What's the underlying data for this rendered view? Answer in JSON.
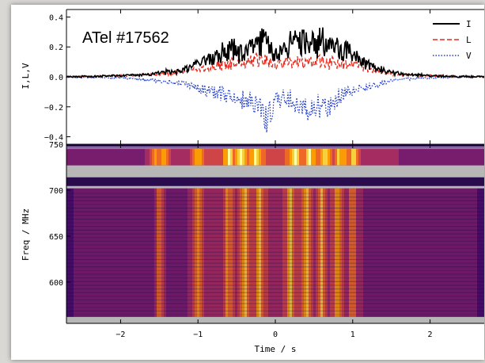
{
  "annotation": "ATel #17562",
  "chart_data": [
    {
      "type": "line",
      "title": "",
      "xlabel": "",
      "ylabel": "I,L,V",
      "xlim": [
        -2.7,
        2.7
      ],
      "ylim": [
        -0.45,
        0.45
      ],
      "yticks": [
        0.4,
        0.2,
        0.0,
        -0.2,
        -0.4
      ],
      "ytick_labels": [
        "0.4",
        "0.2",
        "0.0",
        "−0.2",
        "−0.4"
      ],
      "legend_position": "top-right",
      "series": [
        {
          "name": "I",
          "color": "#000000",
          "style": "solid",
          "x": [
            -2.7,
            -2.0,
            -1.6,
            -1.2,
            -0.8,
            -0.6,
            -0.4,
            -0.2,
            -0.1,
            0.0,
            0.2,
            0.4,
            0.6,
            0.8,
            1.0,
            1.2,
            1.4,
            1.6,
            2.0,
            2.7
          ],
          "y": [
            0.0,
            0.01,
            0.03,
            0.06,
            0.17,
            0.28,
            0.2,
            0.34,
            0.3,
            0.22,
            0.32,
            0.33,
            0.36,
            0.27,
            0.22,
            0.12,
            0.06,
            0.03,
            0.01,
            0.0
          ]
        },
        {
          "name": "L",
          "color": "#e8291c",
          "style": "dashed",
          "x": [
            -2.7,
            -2.0,
            -1.6,
            -1.2,
            -0.8,
            -0.6,
            -0.4,
            -0.2,
            -0.1,
            0.0,
            0.2,
            0.4,
            0.6,
            0.8,
            1.0,
            1.2,
            1.4,
            1.6,
            2.0,
            2.7
          ],
          "y": [
            0.0,
            0.01,
            0.02,
            0.04,
            0.1,
            0.12,
            0.14,
            0.16,
            0.14,
            0.12,
            0.14,
            0.13,
            0.15,
            0.13,
            0.12,
            0.07,
            0.04,
            0.02,
            0.01,
            0.0
          ]
        },
        {
          "name": "V",
          "color": "#1f3ccf",
          "style": "dotted",
          "x": [
            -2.7,
            -2.0,
            -1.6,
            -1.2,
            -0.8,
            -0.6,
            -0.4,
            -0.2,
            -0.1,
            0.0,
            0.2,
            0.4,
            0.6,
            0.8,
            1.0,
            1.2,
            1.4,
            1.6,
            2.0,
            2.7
          ],
          "y": [
            0.0,
            -0.01,
            -0.03,
            -0.06,
            -0.15,
            -0.18,
            -0.22,
            -0.25,
            -0.4,
            -0.2,
            -0.22,
            -0.3,
            -0.3,
            -0.22,
            -0.12,
            -0.1,
            -0.05,
            -0.02,
            -0.01,
            0.0
          ]
        }
      ]
    },
    {
      "type": "heatmap",
      "title": "",
      "xlabel": "Time / s",
      "ylabel": "Freq / MHz",
      "xlim": [
        -2.7,
        2.7
      ],
      "ylim": [
        555,
        750
      ],
      "xticks": [
        -2,
        -1,
        0,
        1,
        2
      ],
      "xtick_labels": [
        "−2",
        "−1",
        "0",
        "1",
        "2"
      ],
      "yticks": [
        750,
        700,
        650,
        600
      ],
      "ytick_labels": [
        "750",
        "700",
        "650",
        "600"
      ],
      "colormap": [
        "#1b0c41",
        "#4a0c6b",
        "#781c6d",
        "#a52c60",
        "#cf4446",
        "#ed6925",
        "#fb9b06",
        "#f7d13d",
        "#fcffa4"
      ],
      "masked_bands_mhz": [
        [
          714,
          727
        ],
        [
          702,
          704.5
        ],
        [
          555,
          562
        ]
      ],
      "bright_times_s": [
        -1.5,
        -1.0,
        -0.6,
        -0.4,
        -0.2,
        0.2,
        0.4,
        0.6,
        0.8,
        1.0
      ],
      "bright_times_top_s": [
        -1.55,
        -1.45,
        -1.0,
        -0.6,
        -0.45,
        -0.25,
        0.25,
        0.45,
        0.65,
        0.85,
        1.0
      ]
    }
  ]
}
